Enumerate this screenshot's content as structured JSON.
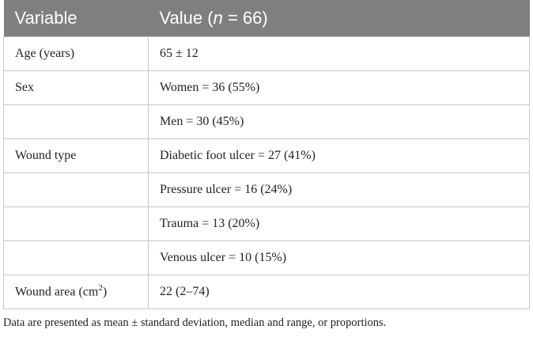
{
  "table": {
    "header": [
      {
        "text": "Variable"
      },
      {
        "before": "Value (",
        "italic": "n",
        "after": " = 66)"
      }
    ],
    "rows": [
      [
        {
          "text": "Age (years)"
        },
        {
          "text": "65 ± 12"
        }
      ],
      [
        {
          "text": "Sex"
        },
        {
          "text": "Women = 36 (55%)"
        }
      ],
      [
        null,
        {
          "text": "Men = 30 (45%)"
        }
      ],
      [
        {
          "text": "Wound type"
        },
        {
          "text": "Diabetic foot ulcer = 27 (41%)"
        }
      ],
      [
        null,
        {
          "text": "Pressure ulcer = 16 (24%)"
        }
      ],
      [
        null,
        {
          "text": "Trauma = 13 (20%)"
        }
      ],
      [
        null,
        {
          "text": "Venous ulcer = 10 (15%)"
        }
      ],
      [
        {
          "before": "Wound area (cm",
          "sup": "2",
          "after": ")"
        },
        {
          "text": "22 (2–74)"
        }
      ]
    ],
    "footnote": "Data are presented as mean ± standard deviation, median and range, or proportions."
  }
}
